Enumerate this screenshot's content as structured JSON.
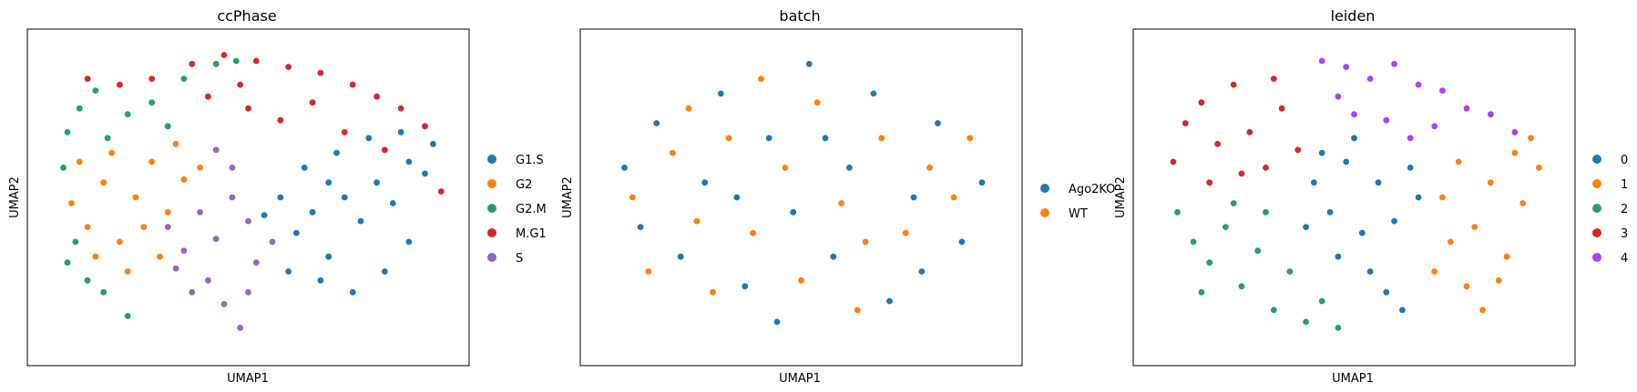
{
  "colors": {
    "blue": "#1f77b4",
    "orange": "#ff7f0e",
    "green": "#279e68",
    "red": "#d62728",
    "purple": "#aa40fc",
    "frame": "#000000",
    "background": "#ffffff"
  },
  "chart_data": [
    {
      "type": "scatter",
      "title": "ccPhase",
      "xlabel": "UMAP1",
      "ylabel": "UMAP2",
      "grid": false,
      "legend_position": "right",
      "legend": [
        {
          "label": "G1.S",
          "color": "#1f77b4"
        },
        {
          "label": "G2",
          "color": "#ff7f0e"
        },
        {
          "label": "G2.M",
          "color": "#279e68"
        },
        {
          "label": "M.G1",
          "color": "#d62728"
        },
        {
          "label": "S",
          "color": "#9467bd"
        }
      ],
      "series": [
        {
          "name": "G1.S",
          "color": "#1f77b4",
          "points": [
            [
              0.62,
              0.38
            ],
            [
              0.66,
              0.45
            ],
            [
              0.7,
              0.3
            ],
            [
              0.74,
              0.5
            ],
            [
              0.78,
              0.42
            ],
            [
              0.82,
              0.55
            ],
            [
              0.86,
              0.48
            ],
            [
              0.9,
              0.62
            ],
            [
              0.58,
              0.5
            ],
            [
              0.64,
              0.6
            ],
            [
              0.72,
              0.65
            ],
            [
              0.8,
              0.7
            ],
            [
              0.88,
              0.72
            ],
            [
              0.94,
              0.58
            ],
            [
              0.68,
              0.22
            ],
            [
              0.76,
              0.18
            ],
            [
              0.84,
              0.25
            ],
            [
              0.9,
              0.35
            ],
            [
              0.6,
              0.25
            ],
            [
              0.7,
              0.55
            ],
            [
              0.96,
              0.68
            ],
            [
              0.54,
              0.44
            ]
          ]
        },
        {
          "name": "G2",
          "color": "#ff7f0e",
          "points": [
            [
              0.06,
              0.48
            ],
            [
              0.1,
              0.4
            ],
            [
              0.14,
              0.55
            ],
            [
              0.18,
              0.35
            ],
            [
              0.22,
              0.5
            ],
            [
              0.26,
              0.62
            ],
            [
              0.3,
              0.45
            ],
            [
              0.34,
              0.56
            ],
            [
              0.12,
              0.3
            ],
            [
              0.2,
              0.25
            ],
            [
              0.28,
              0.3
            ],
            [
              0.08,
              0.62
            ],
            [
              0.16,
              0.65
            ],
            [
              0.38,
              0.6
            ],
            [
              0.24,
              0.4
            ],
            [
              0.32,
              0.68
            ]
          ]
        },
        {
          "name": "G2.M",
          "color": "#279e68",
          "points": [
            [
              0.04,
              0.6
            ],
            [
              0.05,
              0.72
            ],
            [
              0.08,
              0.8
            ],
            [
              0.12,
              0.86
            ],
            [
              0.15,
              0.7
            ],
            [
              0.2,
              0.78
            ],
            [
              0.26,
              0.82
            ],
            [
              0.3,
              0.74
            ],
            [
              0.34,
              0.9
            ],
            [
              0.42,
              0.95
            ],
            [
              0.47,
              0.96
            ],
            [
              0.07,
              0.35
            ],
            [
              0.1,
              0.22
            ],
            [
              0.14,
              0.18
            ],
            [
              0.2,
              0.1
            ],
            [
              0.05,
              0.28
            ]
          ]
        },
        {
          "name": "M.G1",
          "color": "#d62728",
          "points": [
            [
              0.1,
              0.9
            ],
            [
              0.18,
              0.88
            ],
            [
              0.26,
              0.9
            ],
            [
              0.36,
              0.95
            ],
            [
              0.44,
              0.98
            ],
            [
              0.52,
              0.96
            ],
            [
              0.6,
              0.94
            ],
            [
              0.68,
              0.92
            ],
            [
              0.76,
              0.88
            ],
            [
              0.82,
              0.84
            ],
            [
              0.88,
              0.8
            ],
            [
              0.94,
              0.74
            ],
            [
              0.98,
              0.52
            ],
            [
              0.5,
              0.8
            ],
            [
              0.58,
              0.76
            ],
            [
              0.66,
              0.82
            ],
            [
              0.74,
              0.72
            ],
            [
              0.84,
              0.66
            ],
            [
              0.4,
              0.84
            ],
            [
              0.48,
              0.88
            ]
          ]
        },
        {
          "name": "S",
          "color": "#9467bd",
          "points": [
            [
              0.3,
              0.4
            ],
            [
              0.34,
              0.32
            ],
            [
              0.38,
              0.45
            ],
            [
              0.42,
              0.36
            ],
            [
              0.46,
              0.5
            ],
            [
              0.5,
              0.42
            ],
            [
              0.4,
              0.22
            ],
            [
              0.44,
              0.14
            ],
            [
              0.48,
              0.06
            ],
            [
              0.36,
              0.18
            ],
            [
              0.52,
              0.28
            ],
            [
              0.56,
              0.35
            ],
            [
              0.46,
              0.6
            ],
            [
              0.42,
              0.66
            ],
            [
              0.32,
              0.26
            ],
            [
              0.5,
              0.18
            ]
          ]
        }
      ]
    },
    {
      "type": "scatter",
      "title": "batch",
      "xlabel": "UMAP1",
      "ylabel": "UMAP2",
      "grid": false,
      "legend_position": "right",
      "legend": [
        {
          "label": "Ago2KO",
          "color": "#1f77b4"
        },
        {
          "label": "WT",
          "color": "#ff7f0e"
        }
      ],
      "series": [
        {
          "name": "Ago2KO",
          "color": "#1f77b4",
          "points": [
            [
              0.06,
              0.6
            ],
            [
              0.1,
              0.4
            ],
            [
              0.14,
              0.75
            ],
            [
              0.2,
              0.3
            ],
            [
              0.26,
              0.55
            ],
            [
              0.3,
              0.85
            ],
            [
              0.36,
              0.2
            ],
            [
              0.42,
              0.7
            ],
            [
              0.48,
              0.45
            ],
            [
              0.52,
              0.95
            ],
            [
              0.58,
              0.3
            ],
            [
              0.62,
              0.6
            ],
            [
              0.68,
              0.85
            ],
            [
              0.72,
              0.15
            ],
            [
              0.78,
              0.5
            ],
            [
              0.84,
              0.75
            ],
            [
              0.9,
              0.35
            ],
            [
              0.95,
              0.55
            ],
            [
              0.44,
              0.08
            ],
            [
              0.34,
              0.5
            ],
            [
              0.56,
              0.7
            ],
            [
              0.8,
              0.25
            ]
          ]
        },
        {
          "name": "WT",
          "color": "#ff7f0e",
          "points": [
            [
              0.08,
              0.5
            ],
            [
              0.12,
              0.25
            ],
            [
              0.18,
              0.65
            ],
            [
              0.24,
              0.42
            ],
            [
              0.28,
              0.18
            ],
            [
              0.32,
              0.7
            ],
            [
              0.38,
              0.38
            ],
            [
              0.46,
              0.6
            ],
            [
              0.5,
              0.22
            ],
            [
              0.54,
              0.82
            ],
            [
              0.6,
              0.48
            ],
            [
              0.66,
              0.35
            ],
            [
              0.7,
              0.7
            ],
            [
              0.76,
              0.38
            ],
            [
              0.82,
              0.6
            ],
            [
              0.88,
              0.5
            ],
            [
              0.92,
              0.7
            ],
            [
              0.4,
              0.9
            ],
            [
              0.64,
              0.12
            ],
            [
              0.22,
              0.8
            ]
          ]
        }
      ]
    },
    {
      "type": "scatter",
      "title": "leiden",
      "xlabel": "UMAP1",
      "ylabel": "UMAP2",
      "grid": false,
      "legend_position": "right",
      "legend": [
        {
          "label": "0",
          "color": "#1f77b4"
        },
        {
          "label": "1",
          "color": "#ff7f0e"
        },
        {
          "label": "2",
          "color": "#279e68"
        },
        {
          "label": "3",
          "color": "#d62728"
        },
        {
          "label": "4",
          "color": "#aa40fc"
        }
      ],
      "series": [
        {
          "name": "0",
          "color": "#1f77b4",
          "points": [
            [
              0.4,
              0.55
            ],
            [
              0.44,
              0.45
            ],
            [
              0.48,
              0.62
            ],
            [
              0.52,
              0.38
            ],
            [
              0.56,
              0.55
            ],
            [
              0.6,
              0.42
            ],
            [
              0.64,
              0.6
            ],
            [
              0.46,
              0.3
            ],
            [
              0.54,
              0.25
            ],
            [
              0.58,
              0.18
            ],
            [
              0.62,
              0.12
            ],
            [
              0.5,
              0.7
            ],
            [
              0.42,
              0.65
            ],
            [
              0.66,
              0.5
            ],
            [
              0.38,
              0.4
            ]
          ]
        },
        {
          "name": "1",
          "color": "#ff7f0e",
          "points": [
            [
              0.72,
              0.5
            ],
            [
              0.76,
              0.62
            ],
            [
              0.8,
              0.4
            ],
            [
              0.84,
              0.55
            ],
            [
              0.88,
              0.3
            ],
            [
              0.92,
              0.48
            ],
            [
              0.96,
              0.6
            ],
            [
              0.74,
              0.35
            ],
            [
              0.78,
              0.2
            ],
            [
              0.82,
              0.12
            ],
            [
              0.86,
              0.22
            ],
            [
              0.9,
              0.65
            ],
            [
              0.94,
              0.7
            ],
            [
              0.7,
              0.25
            ]
          ]
        },
        {
          "name": "2",
          "color": "#279e68",
          "points": [
            [
              0.06,
              0.45
            ],
            [
              0.1,
              0.35
            ],
            [
              0.14,
              0.28
            ],
            [
              0.18,
              0.4
            ],
            [
              0.22,
              0.2
            ],
            [
              0.26,
              0.32
            ],
            [
              0.3,
              0.12
            ],
            [
              0.34,
              0.25
            ],
            [
              0.38,
              0.08
            ],
            [
              0.42,
              0.15
            ],
            [
              0.46,
              0.06
            ],
            [
              0.2,
              0.48
            ],
            [
              0.28,
              0.45
            ],
            [
              0.12,
              0.18
            ]
          ]
        },
        {
          "name": "3",
          "color": "#d62728",
          "points": [
            [
              0.05,
              0.62
            ],
            [
              0.08,
              0.75
            ],
            [
              0.12,
              0.82
            ],
            [
              0.16,
              0.68
            ],
            [
              0.2,
              0.88
            ],
            [
              0.24,
              0.72
            ],
            [
              0.28,
              0.6
            ],
            [
              0.32,
              0.8
            ],
            [
              0.36,
              0.66
            ],
            [
              0.14,
              0.55
            ],
            [
              0.22,
              0.58
            ],
            [
              0.3,
              0.9
            ]
          ]
        },
        {
          "name": "4",
          "color": "#aa40fc",
          "points": [
            [
              0.42,
              0.96
            ],
            [
              0.48,
              0.94
            ],
            [
              0.54,
              0.9
            ],
            [
              0.6,
              0.95
            ],
            [
              0.66,
              0.88
            ],
            [
              0.72,
              0.86
            ],
            [
              0.78,
              0.8
            ],
            [
              0.84,
              0.78
            ],
            [
              0.9,
              0.72
            ],
            [
              0.5,
              0.78
            ],
            [
              0.58,
              0.76
            ],
            [
              0.64,
              0.7
            ],
            [
              0.46,
              0.84
            ],
            [
              0.7,
              0.74
            ]
          ]
        }
      ]
    }
  ]
}
